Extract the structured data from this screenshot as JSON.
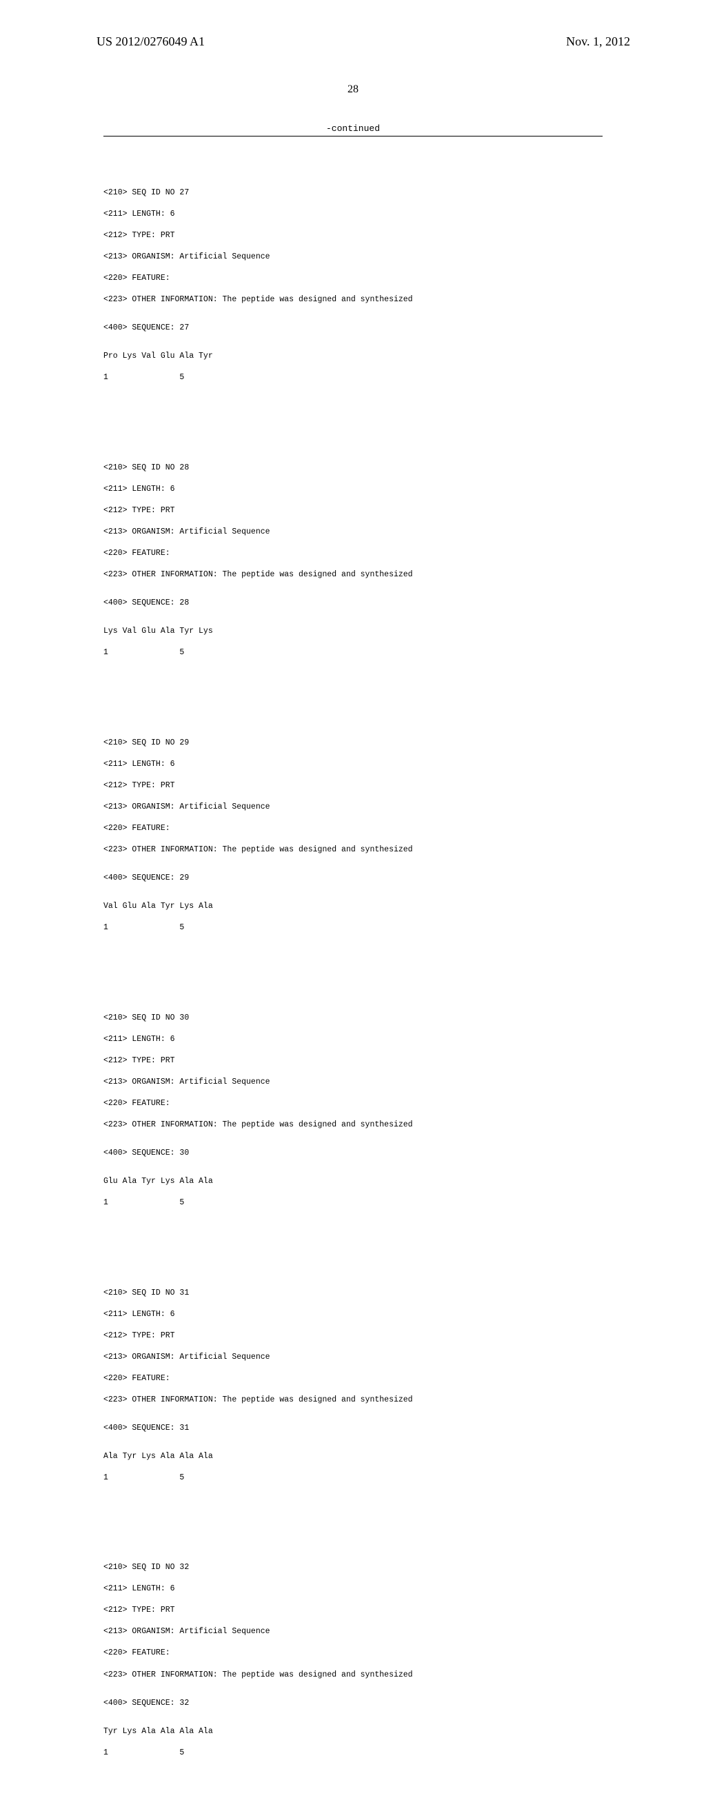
{
  "header": {
    "patent_number": "US 2012/0276049 A1",
    "date": "Nov. 1, 2012"
  },
  "page_number": "28",
  "continued": "-continued",
  "sequences": [
    {
      "id_no": "<210> SEQ ID NO 27",
      "length": "<211> LENGTH: 6",
      "type": "<212> TYPE: PRT",
      "organism": "<213> ORGANISM: Artificial Sequence",
      "feature": "<220> FEATURE:",
      "other_info": "<223> OTHER INFORMATION: The peptide was designed and synthesized",
      "seq_label": "<400> SEQUENCE: 27",
      "residues": "Pro Lys Val Glu Ala Tyr",
      "positions": "1               5"
    },
    {
      "id_no": "<210> SEQ ID NO 28",
      "length": "<211> LENGTH: 6",
      "type": "<212> TYPE: PRT",
      "organism": "<213> ORGANISM: Artificial Sequence",
      "feature": "<220> FEATURE:",
      "other_info": "<223> OTHER INFORMATION: The peptide was designed and synthesized",
      "seq_label": "<400> SEQUENCE: 28",
      "residues": "Lys Val Glu Ala Tyr Lys",
      "positions": "1               5"
    },
    {
      "id_no": "<210> SEQ ID NO 29",
      "length": "<211> LENGTH: 6",
      "type": "<212> TYPE: PRT",
      "organism": "<213> ORGANISM: Artificial Sequence",
      "feature": "<220> FEATURE:",
      "other_info": "<223> OTHER INFORMATION: The peptide was designed and synthesized",
      "seq_label": "<400> SEQUENCE: 29",
      "residues": "Val Glu Ala Tyr Lys Ala",
      "positions": "1               5"
    },
    {
      "id_no": "<210> SEQ ID NO 30",
      "length": "<211> LENGTH: 6",
      "type": "<212> TYPE: PRT",
      "organism": "<213> ORGANISM: Artificial Sequence",
      "feature": "<220> FEATURE:",
      "other_info": "<223> OTHER INFORMATION: The peptide was designed and synthesized",
      "seq_label": "<400> SEQUENCE: 30",
      "residues": "Glu Ala Tyr Lys Ala Ala",
      "positions": "1               5"
    },
    {
      "id_no": "<210> SEQ ID NO 31",
      "length": "<211> LENGTH: 6",
      "type": "<212> TYPE: PRT",
      "organism": "<213> ORGANISM: Artificial Sequence",
      "feature": "<220> FEATURE:",
      "other_info": "<223> OTHER INFORMATION: The peptide was designed and synthesized",
      "seq_label": "<400> SEQUENCE: 31",
      "residues": "Ala Tyr Lys Ala Ala Ala",
      "positions": "1               5"
    },
    {
      "id_no": "<210> SEQ ID NO 32",
      "length": "<211> LENGTH: 6",
      "type": "<212> TYPE: PRT",
      "organism": "<213> ORGANISM: Artificial Sequence",
      "feature": "<220> FEATURE:",
      "other_info": "<223> OTHER INFORMATION: The peptide was designed and synthesized",
      "seq_label": "<400> SEQUENCE: 32",
      "residues": "Tyr Lys Ala Ala Ala Ala",
      "positions": "1               5"
    }
  ]
}
